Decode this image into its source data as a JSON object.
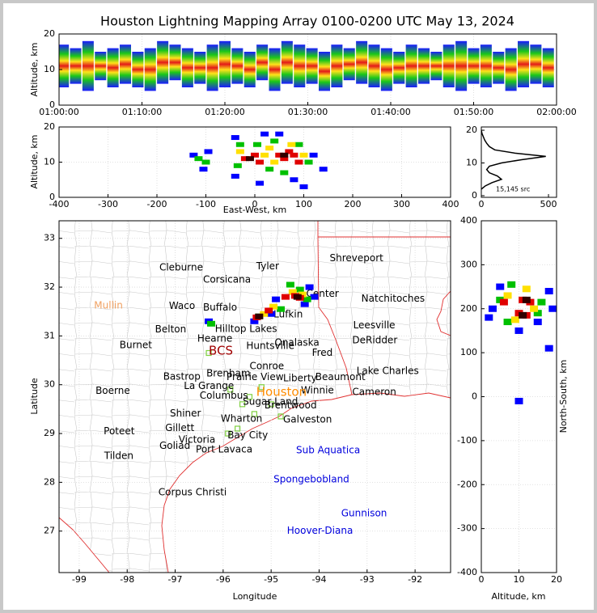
{
  "chart_data": [
    {
      "type": "streak",
      "title": "Houston Lightning Mapping Array 0100-0200 UTC May 13, 2024",
      "ylabel": "Altitude, km",
      "x": [
        "01:00:30",
        "01:02:00",
        "01:03:30",
        "01:05:00",
        "01:06:30",
        "01:08:00",
        "01:09:30",
        "01:11:00",
        "01:12:30",
        "01:14:00",
        "01:15:30",
        "01:17:00",
        "01:18:30",
        "01:20:00",
        "01:21:30",
        "01:23:00",
        "01:24:30",
        "01:26:00",
        "01:27:30",
        "01:29:00",
        "01:30:30",
        "01:32:00",
        "01:33:30",
        "01:35:00",
        "01:36:30",
        "01:38:00",
        "01:39:30",
        "01:41:00",
        "01:42:30",
        "01:44:00",
        "01:45:30",
        "01:47:00",
        "01:48:30",
        "01:50:00",
        "01:51:30",
        "01:53:00",
        "01:54:30",
        "01:56:00",
        "01:57:30",
        "01:59:00"
      ],
      "low": [
        5,
        6,
        4,
        7,
        5,
        6,
        5,
        4,
        6,
        7,
        5,
        6,
        4,
        5,
        6,
        5,
        7,
        4,
        6,
        5,
        6,
        4,
        5,
        7,
        6,
        5,
        4,
        6,
        5,
        6,
        7,
        5,
        4,
        6,
        5,
        6,
        4,
        5,
        6,
        5
      ],
      "high": [
        17,
        16,
        18,
        15,
        16,
        17,
        15,
        16,
        18,
        17,
        16,
        15,
        17,
        18,
        16,
        15,
        17,
        16,
        18,
        17,
        16,
        15,
        17,
        16,
        18,
        17,
        16,
        15,
        17,
        16,
        15,
        17,
        18,
        16,
        17,
        15,
        16,
        18,
        17,
        16
      ],
      "xlim": [
        "01:00:00",
        "02:00:00"
      ],
      "xticks": [
        "01:00:00",
        "01:10:00",
        "01:20:00",
        "01:30:00",
        "01:40:00",
        "01:50:00",
        "02:00:00"
      ],
      "ylim": [
        0,
        20
      ],
      "yticks": [
        0,
        10,
        20
      ],
      "grid": true
    },
    {
      "type": "scatter",
      "xlabel": "East-West, km",
      "ylabel": "Altitude, km",
      "x": [
        -40,
        -40,
        10,
        50,
        80,
        120,
        100,
        140,
        20,
        -125,
        -95,
        -105,
        -35,
        -30,
        30,
        40,
        90,
        110,
        60,
        5,
        -115,
        -100,
        -30,
        20,
        40,
        100,
        30,
        75,
        -20,
        0,
        10,
        50,
        60,
        80,
        90,
        70,
        -10,
        60
      ],
      "y": [
        6,
        17,
        4,
        18,
        5,
        12,
        3,
        8,
        18,
        12,
        13,
        8,
        9,
        15,
        8,
        16,
        15,
        10,
        7,
        15,
        11,
        10,
        13,
        12,
        10,
        12,
        14,
        15,
        11,
        12,
        10,
        12,
        11,
        12,
        10,
        13,
        11,
        12
      ],
      "colors": [
        "#0000ff",
        "#0000ff",
        "#0000ff",
        "#0000ff",
        "#0000ff",
        "#0000ff",
        "#0000ff",
        "#0000ff",
        "#0000ff",
        "#0000ff",
        "#0000ff",
        "#0000ff",
        "#00c000",
        "#00c000",
        "#00c000",
        "#00c000",
        "#00c000",
        "#00c000",
        "#00c000",
        "#00c000",
        "#00c000",
        "#00c000",
        "#ffe000",
        "#ffe000",
        "#ffe000",
        "#ffe000",
        "#ffe000",
        "#ffe000",
        "#e00000",
        "#e00000",
        "#e00000",
        "#e00000",
        "#e00000",
        "#e00000",
        "#e00000",
        "#e00000",
        "#300000",
        "#300000"
      ],
      "xlim": [
        -400,
        400
      ],
      "xticks": [
        -400,
        -300,
        -200,
        -100,
        0,
        100,
        200,
        300,
        400
      ],
      "ylim": [
        0,
        20
      ],
      "yticks": [
        0,
        10,
        20
      ],
      "grid": true
    },
    {
      "type": "line",
      "annotation": "15,145 src",
      "x": [
        0,
        30,
        80,
        150,
        120,
        60,
        40,
        60,
        150,
        300,
        480,
        250,
        100,
        60,
        40,
        25,
        15,
        5,
        0
      ],
      "y": [
        2,
        3,
        4,
        5,
        6,
        7,
        8,
        9,
        10,
        11,
        12,
        13,
        14,
        15,
        16,
        17,
        18,
        19,
        20
      ],
      "color": "#000000",
      "xlim": [
        0,
        560
      ],
      "xticks": [
        0,
        500
      ],
      "ylim": [
        -0.5,
        21
      ],
      "yticks": [
        0,
        10,
        20
      ],
      "grid": false
    },
    {
      "type": "map",
      "xlabel": "Longitude",
      "ylabel": "Latitude",
      "cities": {
        "names": [
          "Cleburne",
          "Tyler",
          "Shreveport",
          "Corsicana",
          "Mullin",
          "Waco",
          "Natchitoches",
          "Center",
          "Buffalo",
          "Lufkin",
          "Belton",
          "Leesville",
          "Hilltop Lakes",
          "DeRidder",
          "Burnet",
          "Hearne",
          "Huntsville",
          "Onalaska",
          "BCS",
          "Fred",
          "Conroe",
          "Lake Charles",
          "Bastrop",
          "Brenham",
          "Prairie View",
          "Liberty",
          "Beaumont",
          "La Grange",
          "Winnie",
          "Boerne",
          "Cameron",
          "Houston",
          "Columbus",
          "Sugar Land",
          "Brentwood",
          "Shiner",
          "Galveston",
          "Wharton",
          "Poteet",
          "Gillett",
          "Bay City",
          "Victoria",
          "Goliad",
          "Port Lavaca",
          "Sub Aquatica",
          "Tilden",
          "Spongebobland",
          "Corpus Christi",
          "Gunnison",
          "Hoover-Diana"
        ],
        "lon": [
          -97.33,
          -95.31,
          -93.78,
          -96.42,
          -98.69,
          -97.13,
          -93.12,
          -94.27,
          -96.42,
          -94.95,
          -97.42,
          -93.29,
          -96.17,
          -93.31,
          -98.16,
          -96.54,
          -95.52,
          -94.93,
          -96.3,
          -94.15,
          -95.45,
          -93.22,
          -97.25,
          -96.35,
          -95.93,
          -94.75,
          -94.08,
          -96.82,
          -94.38,
          -98.66,
          -93.31,
          -95.31,
          -96.49,
          -95.59,
          -95.14,
          -97.11,
          -94.75,
          -96.05,
          -98.49,
          -97.21,
          -95.91,
          -96.93,
          -97.33,
          -96.57,
          -94.48,
          -98.48,
          -94.95,
          -97.35,
          -93.54,
          -94.67
        ],
        "lat": [
          32.4,
          32.42,
          32.59,
          32.15,
          31.62,
          31.61,
          31.76,
          31.86,
          31.58,
          31.44,
          31.13,
          31.21,
          31.14,
          30.91,
          30.81,
          30.94,
          30.79,
          30.86,
          30.69,
          30.65,
          30.38,
          30.28,
          30.16,
          30.23,
          30.15,
          30.13,
          30.15,
          29.97,
          29.88,
          29.87,
          29.85,
          29.85,
          29.77,
          29.65,
          29.57,
          29.41,
          29.28,
          29.3,
          29.04,
          29.11,
          28.96,
          28.87,
          28.74,
          28.67,
          28.65,
          28.54,
          28.06,
          27.79,
          27.36,
          27.0
        ],
        "colors": [
          "#000000",
          "#000000",
          "#000000",
          "#000000",
          "#f0a060",
          "#000000",
          "#000000",
          "#000000",
          "#000000",
          "#000000",
          "#000000",
          "#000000",
          "#000000",
          "#000000",
          "#000000",
          "#000000",
          "#000000",
          "#000000",
          "#a00000",
          "#000000",
          "#000000",
          "#000000",
          "#000000",
          "#000000",
          "#000000",
          "#000000",
          "#000000",
          "#000000",
          "#000000",
          "#000000",
          "#000000",
          "#ff8c00",
          "#000000",
          "#000000",
          "#000000",
          "#000000",
          "#000000",
          "#000000",
          "#000000",
          "#000000",
          "#000000",
          "#000000",
          "#000000",
          "#000000",
          "#0000dd",
          "#000000",
          "#0000dd",
          "#000000",
          "#0000dd",
          "#0000dd"
        ]
      },
      "stations": {
        "lon": [
          -96.3,
          -95.85,
          -95.6,
          -95.35,
          -95.7,
          -95.9,
          -94.8,
          -95.2,
          -95.45,
          -95.0
        ],
        "lat": [
          30.65,
          29.9,
          29.6,
          29.4,
          29.1,
          29.0,
          29.35,
          29.95,
          29.75,
          29.6
        ],
        "color": "#7fd040"
      },
      "sources": {
        "lon": [
          -95.35,
          -94.2,
          -94.9,
          -94.3,
          -95.0,
          -94.1,
          -96.3,
          -95.25,
          -94.8,
          -94.4,
          -94.6,
          -94.25,
          -96.25,
          -95.15,
          -94.95,
          -94.55,
          -94.35,
          -95.3,
          -95.05,
          -94.7,
          -94.5,
          -94.4,
          -95.25,
          -94.45
        ],
        "lat": [
          31.3,
          32.0,
          31.75,
          31.65,
          31.45,
          31.8,
          31.3,
          31.4,
          31.55,
          31.95,
          32.05,
          31.75,
          31.25,
          31.45,
          31.6,
          31.9,
          31.85,
          31.38,
          31.52,
          31.8,
          31.82,
          31.78,
          31.4,
          31.8
        ],
        "colors": [
          "#0000ff",
          "#0000ff",
          "#0000ff",
          "#0000ff",
          "#0000ff",
          "#0000ff",
          "#0000ff",
          "#00c000",
          "#00c000",
          "#00c000",
          "#00c000",
          "#00c000",
          "#00c000",
          "#ffe000",
          "#ffe000",
          "#ffe000",
          "#ffe000",
          "#e00000",
          "#e00000",
          "#e00000",
          "#e00000",
          "#e00000",
          "#300000",
          "#300000"
        ]
      },
      "xlim": [
        -99.42,
        -91.26
      ],
      "xticks": [
        -99,
        -98,
        -97,
        -96,
        -95,
        -94,
        -93,
        -92
      ],
      "ylim": [
        26.15,
        33.36
      ],
      "yticks": [
        27,
        28,
        29,
        30,
        31,
        32,
        33
      ],
      "grid": true
    },
    {
      "type": "scatter",
      "xlabel": "Altitude, km",
      "ylabel": "North-South, km",
      "x": [
        3,
        5,
        18,
        10,
        15,
        2,
        19,
        10,
        18,
        5,
        8,
        16,
        7,
        15,
        7,
        12,
        14,
        9,
        6,
        11,
        13,
        10,
        12,
        12,
        11
      ],
      "y": [
        200,
        250,
        240,
        150,
        170,
        180,
        200,
        -10,
        110,
        220,
        255,
        215,
        170,
        190,
        230,
        245,
        200,
        175,
        215,
        220,
        215,
        190,
        185,
        220,
        185
      ],
      "colors": [
        "#0000ff",
        "#0000ff",
        "#0000ff",
        "#0000ff",
        "#0000ff",
        "#0000ff",
        "#0000ff",
        "#0000ff",
        "#0000ff",
        "#00c000",
        "#00c000",
        "#00c000",
        "#00c000",
        "#00c000",
        "#ffe000",
        "#ffe000",
        "#ffe000",
        "#ffe000",
        "#e00000",
        "#e00000",
        "#e00000",
        "#e00000",
        "#e00000",
        "#300000",
        "#300000"
      ],
      "xlim": [
        0,
        20
      ],
      "xticks": [
        0,
        10,
        20
      ],
      "ylim": [
        -400,
        400
      ],
      "yticks": [
        -400,
        -300,
        -200,
        -100,
        0,
        100,
        200,
        300,
        400
      ],
      "grid": true
    }
  ]
}
